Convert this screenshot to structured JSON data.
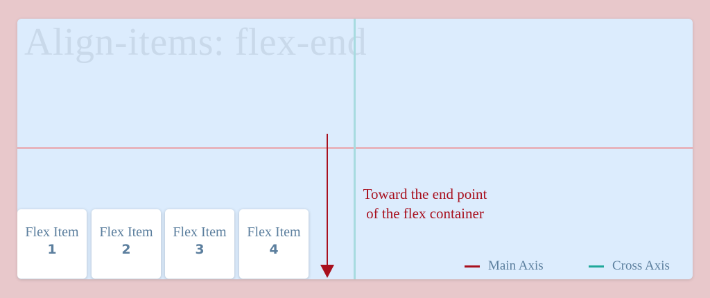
{
  "title": "Align-items: flex-end",
  "items": [
    {
      "label": "Flex Item",
      "number": "1"
    },
    {
      "label": "Flex Item",
      "number": "2"
    },
    {
      "label": "Flex Item",
      "number": "3"
    },
    {
      "label": "Flex Item",
      "number": "4"
    }
  ],
  "annotation": {
    "line1": "Toward the end point",
    "line2": "of the flex container"
  },
  "legend": {
    "main_axis": {
      "label": "Main Axis",
      "color": "#a8101e"
    },
    "cross_axis": {
      "label": "Cross Axis",
      "color": "#1fa89a"
    }
  }
}
